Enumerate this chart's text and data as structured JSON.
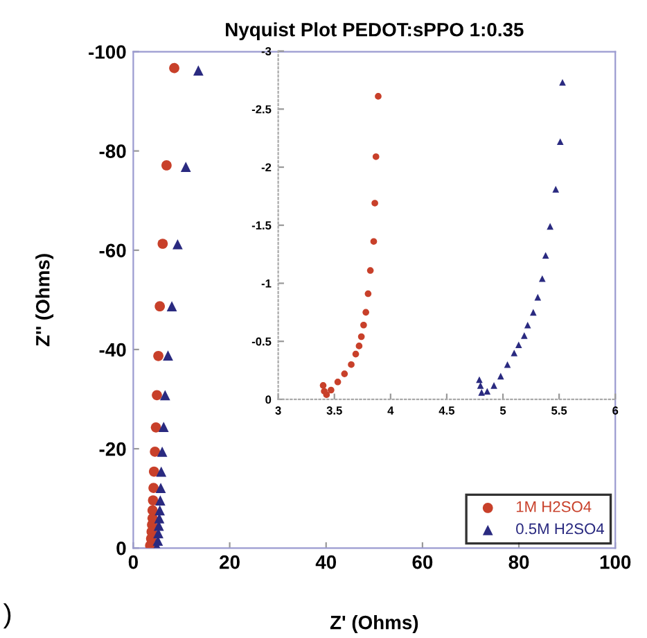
{
  "chart_data": [
    {
      "type": "scatter",
      "title": "Nyquist Plot PEDOT:sPPO 1:0.35",
      "xlabel": "Z' (Ohms)",
      "ylabel": "Z'' (Ohms)",
      "xlim": [
        0,
        100
      ],
      "ylim": [
        0,
        -100
      ],
      "xticks": [
        0,
        20,
        40,
        60,
        80,
        100
      ],
      "yticks": [
        0,
        -20,
        -40,
        -60,
        -80,
        -100
      ],
      "legend": "bottom right",
      "annotations": [
        ")"
      ],
      "series": [
        {
          "name": "1M H2SO4",
          "color": "#c8402a",
          "marker": "circle",
          "x": [
            8.5,
            6.9,
            6.1,
            5.5,
            5.2,
            4.9,
            4.7,
            4.5,
            4.3,
            4.2,
            4.1,
            4.0,
            4.0,
            3.9,
            3.8,
            3.7,
            3.5
          ],
          "values": [
            -96.7,
            -77.1,
            -61.3,
            -48.7,
            -38.7,
            -30.8,
            -24.3,
            -19.4,
            -15.4,
            -12.1,
            -9.6,
            -7.6,
            -6,
            -4.7,
            -3.3,
            -1.9,
            -0.5
          ]
        },
        {
          "name": "0.5M H2SO4",
          "color": "#2a2a80",
          "marker": "triangle",
          "x": [
            13.5,
            10.9,
            9.2,
            8.0,
            7.2,
            6.6,
            6.3,
            6.0,
            5.8,
            5.7,
            5.6,
            5.5,
            5.4,
            5.3,
            5.2,
            5.1,
            4.9
          ],
          "values": [
            -96.2,
            -76.8,
            -61.2,
            -48.7,
            -38.8,
            -30.8,
            -24.4,
            -19.4,
            -15.4,
            -12.1,
            -9.6,
            -7.6,
            -6,
            -4.5,
            -3,
            -1.5,
            -0.3
          ]
        }
      ]
    },
    {
      "type": "scatter",
      "xlim": [
        3,
        6
      ],
      "ylim": [
        0,
        -3
      ],
      "xticks": [
        3,
        3.5,
        4,
        4.5,
        5,
        5.5,
        6
      ],
      "yticks": [
        0,
        -0.5,
        -1,
        -1.5,
        -2,
        -2.5,
        -3
      ],
      "series": [
        {
          "color": "#c8402a",
          "marker": "circle",
          "x": [
            3.89,
            3.87,
            3.86,
            3.85,
            3.82,
            3.8,
            3.78,
            3.76,
            3.74,
            3.72,
            3.69,
            3.65,
            3.59,
            3.53,
            3.47,
            3.43,
            3.41,
            3.4
          ],
          "values": [
            -2.61,
            -2.09,
            -1.69,
            -1.36,
            -1.11,
            -0.91,
            -0.75,
            -0.64,
            -0.54,
            -0.46,
            -0.39,
            -0.3,
            -0.22,
            -0.15,
            -0.08,
            -0.04,
            -0.07,
            -0.12
          ]
        },
        {
          "color": "#2a2a80",
          "marker": "triangle",
          "x": [
            5.53,
            5.51,
            5.47,
            5.42,
            5.38,
            5.35,
            5.31,
            5.27,
            5.22,
            5.19,
            5.14,
            5.1,
            5.04,
            4.98,
            4.92,
            4.86,
            4.81,
            4.8,
            4.79
          ],
          "values": [
            -2.73,
            -2.22,
            -1.81,
            -1.49,
            -1.24,
            -1.04,
            -0.88,
            -0.75,
            -0.64,
            -0.55,
            -0.47,
            -0.4,
            -0.3,
            -0.2,
            -0.12,
            -0.07,
            -0.06,
            -0.12,
            -0.17
          ]
        }
      ]
    }
  ]
}
